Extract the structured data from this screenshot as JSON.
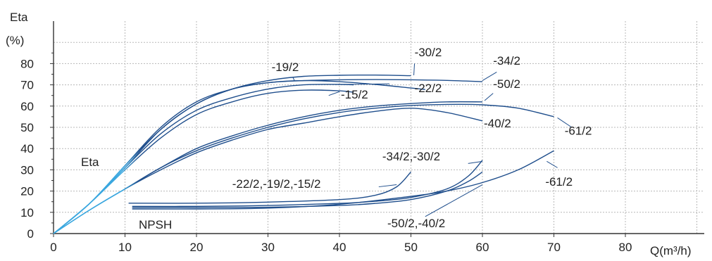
{
  "chart_data": {
    "type": "line",
    "y_title_lines": [
      "Eta",
      "(%)"
    ],
    "xlabel": "Q(m³/h)",
    "xlim": [
      0,
      90
    ],
    "ylim": [
      0,
      90
    ],
    "x_ticks": [
      0,
      10,
      20,
      30,
      40,
      50,
      60,
      70,
      80
    ],
    "y_ticks": [
      0,
      10,
      20,
      30,
      40,
      50,
      60,
      70,
      80
    ],
    "grid": true,
    "colors": {
      "curve": "#1f4e8c",
      "start": "#3aa7df",
      "grid": "#b8b8b8",
      "axis": "#333333"
    },
    "group_labels": {
      "eta": "Eta",
      "npsh": "NPSH"
    },
    "eta_series": [
      {
        "name": "-30/2",
        "points": [
          [
            0,
            0
          ],
          [
            5,
            14
          ],
          [
            10,
            31
          ],
          [
            15,
            49
          ],
          [
            20,
            61
          ],
          [
            25,
            68
          ],
          [
            30,
            72
          ],
          [
            35,
            74
          ],
          [
            40,
            74.5
          ],
          [
            45,
            74.6
          ],
          [
            50,
            74.3
          ]
        ]
      },
      {
        "name": "-34/2",
        "points": [
          [
            0,
            0
          ],
          [
            5,
            14
          ],
          [
            10,
            32
          ],
          [
            15,
            49
          ],
          [
            20,
            61
          ],
          [
            25,
            68
          ],
          [
            30,
            71
          ],
          [
            35,
            72
          ],
          [
            40,
            72.4
          ],
          [
            45,
            72.5
          ],
          [
            50,
            72.4
          ],
          [
            55,
            72.1
          ],
          [
            60,
            71.5
          ]
        ]
      },
      {
        "name": "-19/2",
        "points": [
          [
            0,
            0
          ],
          [
            5,
            14
          ],
          [
            10,
            32
          ],
          [
            15,
            50
          ],
          [
            20,
            62
          ],
          [
            25,
            68
          ],
          [
            30,
            71
          ],
          [
            35,
            72
          ],
          [
            40,
            71.5
          ],
          [
            45,
            70.2
          ],
          [
            50,
            68.5
          ],
          [
            52,
            67.8
          ]
        ]
      },
      {
        "name": "-22/2",
        "points": [
          [
            0,
            0
          ],
          [
            5,
            14
          ],
          [
            10,
            31
          ],
          [
            15,
            47
          ],
          [
            20,
            58
          ],
          [
            25,
            64
          ],
          [
            30,
            68
          ],
          [
            35,
            70
          ],
          [
            40,
            70.2
          ],
          [
            42,
            70
          ]
        ]
      },
      {
        "name": "-15/2",
        "points": [
          [
            0,
            0
          ],
          [
            5,
            14
          ],
          [
            10,
            30
          ],
          [
            15,
            45
          ],
          [
            20,
            56
          ],
          [
            25,
            62
          ],
          [
            30,
            66
          ],
          [
            35,
            67.5
          ],
          [
            40,
            67.2
          ],
          [
            42,
            66.5
          ]
        ]
      },
      {
        "name": "-50/2",
        "points": [
          [
            0,
            0
          ],
          [
            5,
            11
          ],
          [
            10,
            21
          ],
          [
            15,
            31
          ],
          [
            20,
            40
          ],
          [
            25,
            46
          ],
          [
            30,
            51
          ],
          [
            35,
            55
          ],
          [
            40,
            58
          ],
          [
            45,
            60
          ],
          [
            50,
            61.2
          ],
          [
            55,
            62
          ],
          [
            60,
            62
          ]
        ]
      },
      {
        "name": "-61/2",
        "points": [
          [
            0,
            0
          ],
          [
            5,
            11
          ],
          [
            10,
            21
          ],
          [
            15,
            31
          ],
          [
            20,
            39
          ],
          [
            25,
            45
          ],
          [
            30,
            50
          ],
          [
            35,
            54
          ],
          [
            40,
            57
          ],
          [
            45,
            59
          ],
          [
            50,
            60.3
          ],
          [
            55,
            60.8
          ],
          [
            60,
            60.6
          ],
          [
            65,
            59
          ],
          [
            70,
            55
          ]
        ]
      },
      {
        "name": "-40/2",
        "points": [
          [
            0,
            0
          ],
          [
            5,
            11
          ],
          [
            10,
            21
          ],
          [
            15,
            30
          ],
          [
            20,
            38
          ],
          [
            25,
            44
          ],
          [
            30,
            49
          ],
          [
            35,
            52
          ],
          [
            40,
            55
          ],
          [
            45,
            57.5
          ],
          [
            50,
            59
          ],
          [
            55,
            57
          ],
          [
            60,
            53
          ]
        ]
      }
    ],
    "npsh_series": [
      {
        "name": "-22/2,-19/2,-15/2",
        "points": [
          [
            10.5,
            14.3
          ],
          [
            20,
            14.3
          ],
          [
            30,
            14.8
          ],
          [
            40,
            16
          ],
          [
            45,
            18
          ],
          [
            48,
            22
          ],
          [
            50,
            29
          ]
        ]
      },
      {
        "name": "-34/2,-30/2",
        "points": [
          [
            11,
            12.8
          ],
          [
            20,
            12.8
          ],
          [
            30,
            13.2
          ],
          [
            40,
            14.2
          ],
          [
            45,
            15.2
          ],
          [
            50,
            17
          ],
          [
            55,
            21
          ],
          [
            58,
            27
          ],
          [
            60,
            34.5
          ]
        ]
      },
      {
        "name": "-50/2,-40/2",
        "points": [
          [
            11,
            12.3
          ],
          [
            20,
            12.3
          ],
          [
            30,
            12.4
          ],
          [
            40,
            13.2
          ],
          [
            45,
            14.2
          ],
          [
            50,
            16
          ],
          [
            55,
            20
          ],
          [
            58,
            24.5
          ],
          [
            60,
            29
          ]
        ]
      },
      {
        "name": "-61/2",
        "points": [
          [
            11,
            11.6
          ],
          [
            20,
            11.6
          ],
          [
            30,
            12
          ],
          [
            40,
            13.8
          ],
          [
            50,
            17.5
          ],
          [
            55,
            20
          ],
          [
            60,
            24
          ],
          [
            65,
            30
          ],
          [
            70,
            39
          ]
        ]
      }
    ],
    "labels": [
      {
        "text": "-30/2",
        "at": [
          50.5,
          83.5
        ],
        "leader": [
          [
            50.5,
            80
          ],
          [
            50.4,
            74.5
          ]
        ]
      },
      {
        "text": "-34/2",
        "at": [
          61.5,
          79.5
        ],
        "leader": [
          [
            62,
            76
          ],
          [
            60,
            72
          ]
        ]
      },
      {
        "text": "-19/2",
        "at": [
          30.5,
          76.5
        ],
        "leader": [
          [
            33.5,
            73.5
          ],
          [
            33.7,
            72
          ]
        ]
      },
      {
        "text": "-50/2",
        "at": [
          61.5,
          68.5
        ],
        "leader": [
          [
            61.5,
            66
          ],
          [
            60.3,
            62.6
          ]
        ]
      },
      {
        "text": "-22/2",
        "at": [
          50.5,
          66.5
        ],
        "leader": [
          [
            47,
            70.5
          ],
          [
            40.5,
            70.2
          ]
        ]
      },
      {
        "text": "-15/2",
        "at": [
          40.2,
          63.5
        ],
        "leader": [
          [
            38.5,
            65
          ],
          [
            40,
            66.8
          ]
        ]
      },
      {
        "text": "-40/2",
        "at": [
          60.2,
          50
        ]
      },
      {
        "text": "-61/2",
        "at": [
          71.5,
          46.5
        ],
        "leader": [
          [
            72.5,
            50
          ],
          [
            70.5,
            54.5
          ]
        ]
      },
      {
        "text": "-34/2,-30/2",
        "at": [
          46,
          34.5
        ],
        "leader": [
          [
            58,
            33
          ],
          [
            60,
            34
          ]
        ]
      },
      {
        "text": "-22/2,-19/2,-15/2",
        "at": [
          25,
          21.5
        ],
        "leader": [
          [
            45.5,
            22
          ],
          [
            48,
            23
          ]
        ]
      },
      {
        "text": "-61/2",
        "at": [
          68.8,
          22.5
        ],
        "leader": [
          [
            70.5,
            31
          ],
          [
            69,
            34
          ]
        ]
      },
      {
        "text": "-50/2,-40/2",
        "at": [
          46.7,
          3
        ],
        "leader": [
          [
            52,
            8
          ],
          [
            60,
            23
          ]
        ]
      }
    ]
  }
}
